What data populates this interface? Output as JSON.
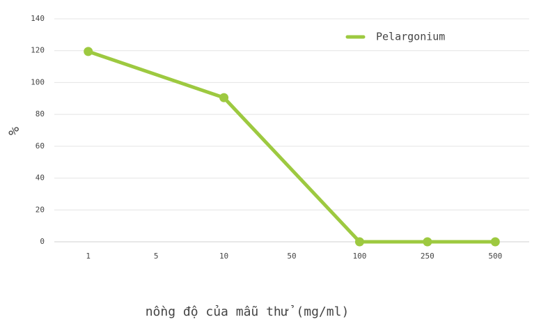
{
  "chart_data": {
    "type": "line",
    "categories": [
      "1",
      "5",
      "10",
      "50",
      "100",
      "250",
      "500"
    ],
    "series": [
      {
        "name": "Pelargonium",
        "color": "#9dc940",
        "x": [
          "1",
          "10",
          "100",
          "250",
          "500"
        ],
        "values": [
          119.5,
          90.5,
          0,
          0,
          0
        ]
      }
    ],
    "ylim": [
      0,
      140
    ],
    "yticks": [
      0,
      20,
      40,
      60,
      80,
      100,
      120,
      140
    ],
    "ylabel": "%",
    "xlabel": "nồng độ của mẫu thử (mg/ml)",
    "grid": true,
    "legend": "top-right"
  }
}
